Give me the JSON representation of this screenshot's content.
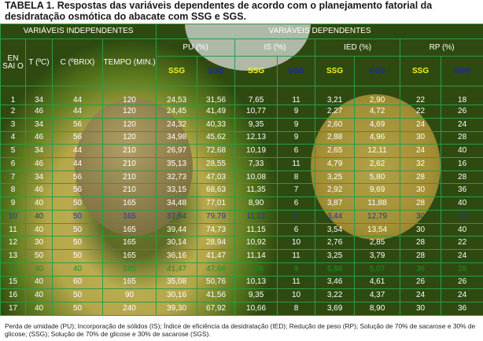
{
  "title": {
    "label": "TABELA 1.",
    "text": "Respostas das variáveis dependentes de acordo com o planejamento fatorial da desidratação osmótica do abacate com SSG e SGS."
  },
  "headers": {
    "independent": "VARIÁVEIS INDEPENDENTES",
    "dependent": "VARIÁVEIS DEPENDENTES",
    "ensaio": "EN SAI O",
    "t": "T (ºC)",
    "c": "C (ºBRIX)",
    "tempo": "TEMPO (MIN.)",
    "pu": "PU (%)",
    "is": "IS (%)",
    "ied": "IED (%)",
    "rp": "RP (%)",
    "ssg": "SSG",
    "sgs": "SGS"
  },
  "colors": {
    "grid": "#2e9a45",
    "ssg": "#f3ef2a",
    "sgs": "#1b2e8a",
    "row10": "#2338a6",
    "row14": "#1f8f2a"
  },
  "rows": [
    [
      "1",
      "34",
      "44",
      "120",
      "24,53",
      "31,56",
      "7,65",
      "11",
      "3,21",
      "2,90",
      "22",
      "18"
    ],
    [
      "2",
      "46",
      "44",
      "120",
      "24,45",
      "41,49",
      "10,77",
      "9",
      "2,27",
      "4,72",
      "22",
      "26"
    ],
    [
      "3",
      "34",
      "56",
      "120",
      "24,32",
      "40,33",
      "9,35",
      "9",
      "2,60",
      "4,69",
      "24",
      "24"
    ],
    [
      "4",
      "46",
      "56",
      "120",
      "34,98",
      "45,62",
      "12,13",
      "9",
      "2,88",
      "4,96",
      "30",
      "28"
    ],
    [
      "5",
      "34",
      "44",
      "210",
      "26,97",
      "72,68",
      "10,19",
      "6",
      "2,65",
      "12,11",
      "24",
      "40"
    ],
    [
      "6",
      "46",
      "44",
      "210",
      "35,13",
      "28,55",
      "7,33",
      "11",
      "4,79",
      "2,62",
      "32",
      "16"
    ],
    [
      "7",
      "34",
      "56",
      "210",
      "32,73",
      "47,03",
      "10,08",
      "8",
      "3,25",
      "5,80",
      "28",
      "28"
    ],
    [
      "8",
      "46",
      "56",
      "210",
      "33,15",
      "68,63",
      "11,35",
      "7",
      "2,92",
      "9,69",
      "30",
      "36"
    ],
    [
      "9",
      "40",
      "50",
      "165",
      "34,48",
      "77,01",
      "8,90",
      "6",
      "3,87",
      "11,88",
      "28",
      "40"
    ],
    [
      "10",
      "40",
      "50",
      "165",
      "37,84",
      "79,79",
      "11,01",
      "6",
      "3,44",
      "12,79",
      "30",
      "42"
    ],
    [
      "11",
      "40",
      "50",
      "165",
      "39,44",
      "74,73",
      "11,15",
      "6",
      "3,54",
      "13,54",
      "30",
      "40"
    ],
    [
      "12",
      "30",
      "50",
      "165",
      "30,14",
      "28,94",
      "10,92",
      "10",
      "2,76",
      "2,85",
      "28",
      "22"
    ],
    [
      "13",
      "50",
      "50",
      "165",
      "36,16",
      "41,47",
      "11,14",
      "11",
      "3,25",
      "3,79",
      "28",
      "24"
    ],
    [
      "14",
      "40",
      "40",
      "165",
      "41,47",
      "47,66",
      "7,06",
      "9",
      "5,88",
      "5,07",
      "36",
      "28"
    ],
    [
      "15",
      "40",
      "60",
      "165",
      "35,08",
      "50,76",
      "10,13",
      "11",
      "3,46",
      "4,61",
      "26",
      "26"
    ],
    [
      "16",
      "40",
      "50",
      "90",
      "30,16",
      "41,56",
      "9,35",
      "10",
      "3,22",
      "4,37",
      "24",
      "24"
    ],
    [
      "17",
      "40",
      "50",
      "240",
      "39,30",
      "67,92",
      "10,66",
      "8",
      "3,69",
      "8,90",
      "30",
      "36"
    ]
  ],
  "footnote": "Perda de umidade (PU); Incorporação de sólidos (IS); Índice de eficiência da desidratação (IED); Redução de peso (RP); Solução de 70% de sacarose e 30% de glicose; (SSG); Solução de 70% de glicose e 30% de sacarose (SGS)."
}
